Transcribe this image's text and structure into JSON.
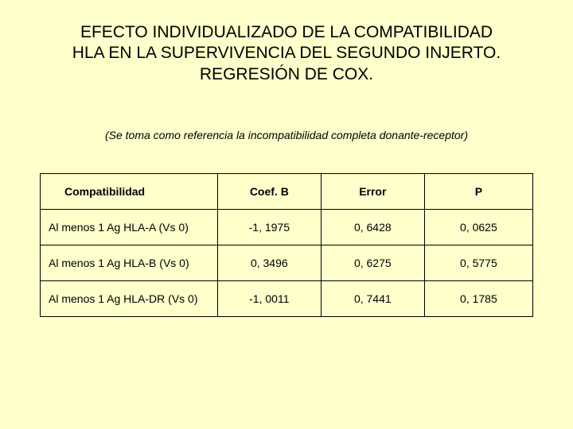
{
  "title": "EFECTO INDIVIDUALIZADO DE LA COMPATIBILIDAD HLA EN LA SUPERVIVENCIA DEL SEGUNDO INJERTO. REGRESIÓN DE COX.",
  "subtitle": "(Se toma como referencia la incompatibilidad completa donante-receptor)",
  "table": {
    "columns": [
      "Compatibilidad",
      "Coef. B",
      "Error",
      "P"
    ],
    "rows": [
      [
        "Al menos 1 Ag HLA-A (Vs 0)",
        "-1, 1975",
        "0, 6428",
        "0, 0625"
      ],
      [
        "Al menos 1 Ag HLA-B (Vs 0)",
        "0, 3496",
        "0, 6275",
        "0, 5775"
      ],
      [
        "Al menos 1 Ag HLA-DR (Vs 0)",
        "-1, 0011",
        "0, 7441",
        "0, 1785"
      ]
    ],
    "background_color": "#ffffcc",
    "border_color": "#000000",
    "header_font_weight": "700",
    "cell_font_size": 14
  }
}
